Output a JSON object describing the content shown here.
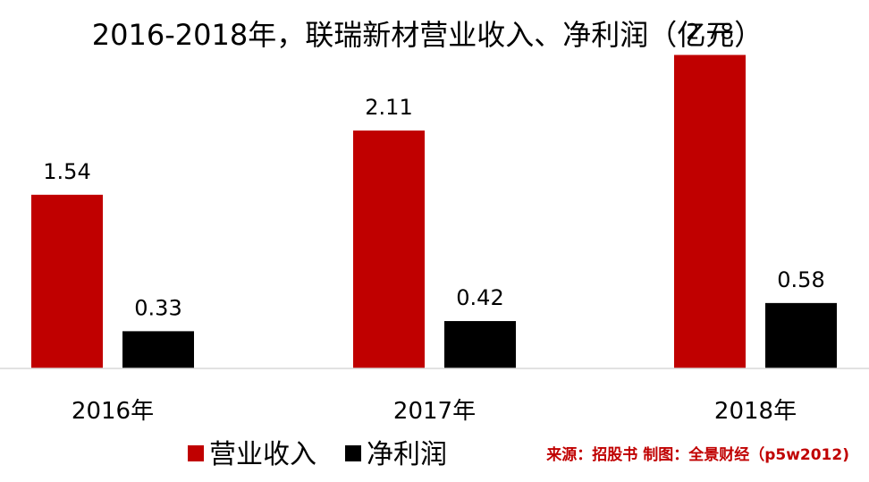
{
  "chart_data": {
    "type": "bar",
    "title": "2016-2018年，联瑞新材营业收入、净利润（亿元）",
    "xlabel": "",
    "ylabel": "",
    "categories": [
      "2016年",
      "2017年",
      "2018年"
    ],
    "series": [
      {
        "name": "营业收入",
        "values": [
          1.54,
          2.11,
          2.78
        ],
        "color": "#c00000"
      },
      {
        "name": "净利润",
        "values": [
          0.33,
          0.42,
          0.58
        ],
        "color": "#000000"
      }
    ],
    "ylim": [
      0,
      2.95
    ],
    "grid": false,
    "legend_position": "bottom",
    "data_labels": true
  },
  "source_note": "来源：招股书  制图：全景财经（p5w2012)",
  "colors": {
    "source_note": "#c00000",
    "axis_line": "#d9d9d9"
  }
}
